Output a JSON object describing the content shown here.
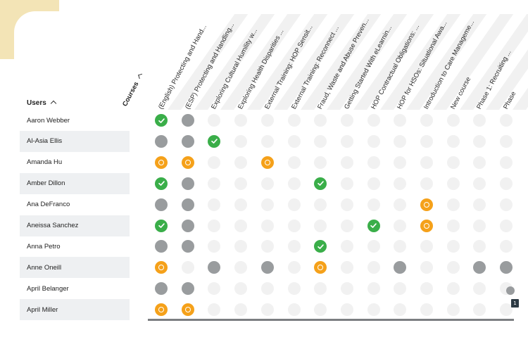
{
  "header": {
    "users_label": "Users",
    "courses_label": "Courses"
  },
  "courses": [
    "(English) Protecting and Hand...",
    "(ESP) Protecting and Handling...",
    "Exploring Cultural Humility w...",
    "Exploring Health Disparities ...",
    "External Training: HOP Sensit...",
    "External Training: Reconnect ...",
    "Fraud, Waste and Abuse Preven...",
    "Getting Started With eLearnin...",
    "HOP Contractual Obligations: ...",
    "HOP for HSOs: Situational Awa...",
    "Introduction to Care Manageme...",
    "New course",
    "Phase 1: Recruiting ...",
    "Phase"
  ],
  "users": [
    {
      "name": "Aaron Webber",
      "statuses": [
        "done",
        "grey",
        "none",
        "none",
        "none",
        "none",
        "none",
        "none",
        "none",
        "none",
        "none",
        "none",
        "none",
        "none"
      ]
    },
    {
      "name": "Al-Asia Ellis",
      "statuses": [
        "grey",
        "grey",
        "done",
        "none",
        "none",
        "none",
        "none",
        "none",
        "none",
        "none",
        "none",
        "none",
        "none",
        "none"
      ]
    },
    {
      "name": "Amanda Hu",
      "statuses": [
        "progress",
        "progress",
        "none",
        "none",
        "progress",
        "none",
        "none",
        "none",
        "none",
        "none",
        "none",
        "none",
        "none",
        "none"
      ]
    },
    {
      "name": "Amber Dillon",
      "statuses": [
        "done",
        "grey",
        "none",
        "none",
        "none",
        "none",
        "done",
        "none",
        "none",
        "none",
        "none",
        "none",
        "none",
        "none"
      ]
    },
    {
      "name": "Ana DeFranco",
      "statuses": [
        "grey",
        "grey",
        "none",
        "none",
        "none",
        "none",
        "none",
        "none",
        "none",
        "none",
        "progress",
        "none",
        "none",
        "none"
      ]
    },
    {
      "name": "Aneissa Sanchez",
      "statuses": [
        "done",
        "grey",
        "none",
        "none",
        "none",
        "none",
        "none",
        "none",
        "done",
        "none",
        "progress",
        "none",
        "none",
        "none"
      ]
    },
    {
      "name": "Anna Petro",
      "statuses": [
        "grey",
        "grey",
        "none",
        "none",
        "none",
        "none",
        "done",
        "none",
        "none",
        "none",
        "none",
        "none",
        "none",
        "none"
      ]
    },
    {
      "name": "Anne Oneill",
      "statuses": [
        "progress",
        "none",
        "grey",
        "none",
        "grey",
        "none",
        "progress",
        "none",
        "none",
        "grey",
        "none",
        "none",
        "grey",
        "grey"
      ]
    },
    {
      "name": "April Belanger",
      "statuses": [
        "grey",
        "grey",
        "none",
        "none",
        "none",
        "none",
        "none",
        "none",
        "none",
        "none",
        "none",
        "none",
        "none",
        "none"
      ]
    },
    {
      "name": "April Miller",
      "statuses": [
        "progress",
        "progress",
        "none",
        "none",
        "none",
        "none",
        "none",
        "none",
        "none",
        "none",
        "none",
        "none",
        "none",
        "none"
      ]
    }
  ],
  "badge_count": "1",
  "colors": {
    "done": "#3aae49",
    "in_progress": "#f5a11a",
    "not_started": "#999c9e",
    "not_enrolled": "#f1f1f1",
    "accent_corner": "#f3e4b6"
  }
}
